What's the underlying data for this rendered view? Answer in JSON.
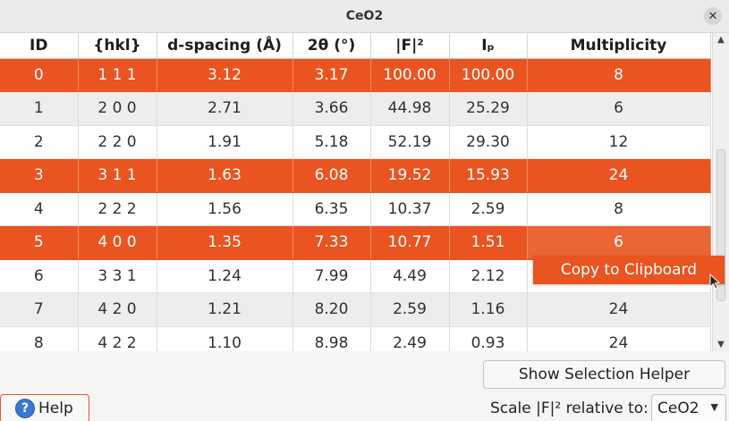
{
  "window": {
    "title": "CeO2"
  },
  "table": {
    "columns": [
      "ID",
      "{hkl}",
      "d-spacing (Å)",
      "2θ (°)",
      "|F|²",
      "Iₚ",
      "Multiplicity"
    ],
    "rows": [
      {
        "id": "0",
        "hkl": "1 1 1",
        "d": "3.12",
        "two_theta": "3.17",
        "f2": "100.00",
        "ip": "100.00",
        "mult": "8",
        "selected": true
      },
      {
        "id": "1",
        "hkl": "2 0 0",
        "d": "2.71",
        "two_theta": "3.66",
        "f2": "44.98",
        "ip": "25.29",
        "mult": "6",
        "selected": false
      },
      {
        "id": "2",
        "hkl": "2 2 0",
        "d": "1.91",
        "two_theta": "5.18",
        "f2": "52.19",
        "ip": "29.30",
        "mult": "12",
        "selected": false
      },
      {
        "id": "3",
        "hkl": "3 1 1",
        "d": "1.63",
        "two_theta": "6.08",
        "f2": "19.52",
        "ip": "15.93",
        "mult": "24",
        "selected": true
      },
      {
        "id": "4",
        "hkl": "2 2 2",
        "d": "1.56",
        "two_theta": "6.35",
        "f2": "10.37",
        "ip": "2.59",
        "mult": "8",
        "selected": false
      },
      {
        "id": "5",
        "hkl": "4 0 0",
        "d": "1.35",
        "two_theta": "7.33",
        "f2": "10.77",
        "ip": "1.51",
        "mult": "6",
        "selected": true
      },
      {
        "id": "6",
        "hkl": "3 3 1",
        "d": "1.24",
        "two_theta": "7.99",
        "f2": "4.49",
        "ip": "2.12",
        "mult": "",
        "selected": false
      },
      {
        "id": "7",
        "hkl": "4 2 0",
        "d": "1.21",
        "two_theta": "8.20",
        "f2": "2.59",
        "ip": "1.16",
        "mult": "24",
        "selected": false
      },
      {
        "id": "8",
        "hkl": "4 2 2",
        "d": "1.10",
        "two_theta": "8.98",
        "f2": "2.49",
        "ip": "0.93",
        "mult": "24",
        "selected": false
      }
    ]
  },
  "context_menu": {
    "copy_label": "Copy to Clipboard"
  },
  "buttons": {
    "selection_helper": "Show Selection Helper",
    "help": "Help"
  },
  "scale": {
    "label": "Scale |F|² relative to:",
    "selected": "CeO2"
  },
  "colors": {
    "accent": "#e95420",
    "stripe": "#ededed"
  },
  "icons": {
    "close": "close-icon",
    "help": "help-icon",
    "dropdown": "chevron-down-icon"
  }
}
